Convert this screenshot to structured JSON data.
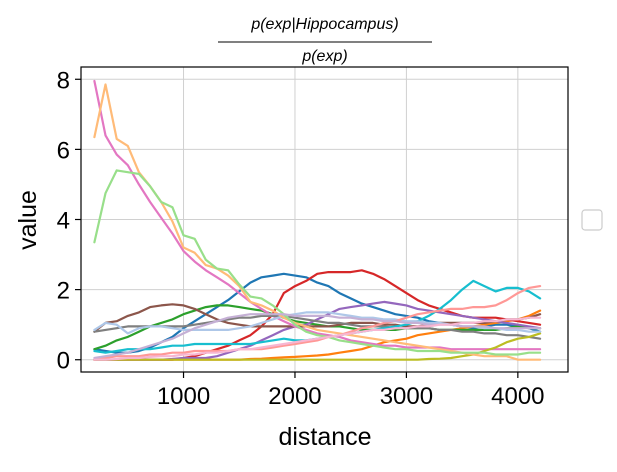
{
  "chart_data": {
    "type": "line",
    "title_numerator": "p(exp|Hippocampus)",
    "title_denominator": "p(exp)",
    "xlabel": "distance",
    "ylabel": "value",
    "xlim": [
      80,
      4450
    ],
    "ylim": [
      -0.35,
      8.35
    ],
    "xticks": [
      1000,
      2000,
      3000,
      4000
    ],
    "yticks": [
      0,
      2,
      4,
      6,
      8
    ],
    "grid": true,
    "legend": "right, empty",
    "x": [
      200,
      300,
      400,
      500,
      600,
      700,
      800,
      900,
      1000,
      1100,
      1200,
      1300,
      1400,
      1500,
      1600,
      1700,
      1800,
      1900,
      2000,
      2100,
      2200,
      2300,
      2400,
      2500,
      2600,
      2700,
      2800,
      2900,
      3000,
      3100,
      3200,
      3300,
      3400,
      3500,
      3600,
      3700,
      3800,
      3900,
      4000,
      4100,
      4200
    ],
    "series": [
      {
        "color": "#1f77b4",
        "values": [
          0.3,
          0.25,
          0.2,
          0.2,
          0.25,
          0.35,
          0.5,
          0.65,
          0.9,
          1.1,
          1.3,
          1.5,
          1.7,
          1.95,
          2.2,
          2.35,
          2.4,
          2.45,
          2.4,
          2.35,
          2.2,
          2.1,
          1.9,
          1.75,
          1.6,
          1.5,
          1.4,
          1.3,
          1.25,
          1.2,
          1.1,
          1.05,
          1.0,
          0.95,
          0.9,
          0.95,
          1.0,
          1.0,
          0.95,
          0.9,
          0.8
        ]
      },
      {
        "color": "#ff7f0e",
        "values": [
          0.0,
          0.0,
          0.0,
          0.0,
          0.0,
          0.0,
          0.0,
          0.0,
          0.0,
          0.0,
          0.0,
          0.0,
          0.0,
          0.0,
          0.02,
          0.03,
          0.05,
          0.07,
          0.08,
          0.1,
          0.12,
          0.15,
          0.2,
          0.25,
          0.3,
          0.4,
          0.5,
          0.55,
          0.6,
          0.7,
          0.75,
          0.8,
          0.85,
          0.9,
          0.95,
          1.0,
          1.05,
          1.1,
          1.15,
          1.25,
          1.4
        ]
      },
      {
        "color": "#2ca02c",
        "values": [
          0.3,
          0.4,
          0.55,
          0.65,
          0.8,
          0.95,
          1.05,
          1.15,
          1.3,
          1.4,
          1.5,
          1.55,
          1.55,
          1.5,
          1.45,
          1.4,
          1.3,
          1.2,
          1.1,
          1.05,
          1.0,
          0.95,
          0.95,
          0.9,
          0.85,
          0.85,
          0.85,
          0.85,
          0.9,
          0.9,
          0.9,
          0.85,
          0.85,
          0.85,
          0.85,
          0.85,
          0.85,
          0.9,
          0.95,
          0.9,
          0.9
        ]
      },
      {
        "color": "#d62728",
        "values": [
          0.0,
          0.0,
          0.0,
          0.0,
          0.0,
          0.0,
          0.0,
          0.0,
          0.05,
          0.1,
          0.2,
          0.3,
          0.4,
          0.55,
          0.7,
          0.95,
          1.3,
          1.9,
          2.1,
          2.25,
          2.45,
          2.5,
          2.5,
          2.5,
          2.55,
          2.45,
          2.3,
          2.1,
          1.9,
          1.7,
          1.55,
          1.45,
          1.35,
          1.25,
          1.2,
          1.2,
          1.2,
          1.15,
          1.1,
          1.05,
          1.0
        ]
      },
      {
        "color": "#9467bd",
        "values": [
          0.0,
          0.0,
          0.0,
          0.0,
          0.0,
          0.0,
          0.0,
          0.02,
          0.05,
          0.05,
          0.05,
          0.1,
          0.2,
          0.3,
          0.4,
          0.55,
          0.7,
          0.85,
          0.95,
          1.0,
          1.15,
          1.3,
          1.45,
          1.5,
          1.55,
          1.6,
          1.65,
          1.6,
          1.55,
          1.45,
          1.4,
          1.35,
          1.3,
          1.25,
          1.2,
          1.15,
          1.1,
          1.05,
          1.0,
          0.95,
          0.9
        ]
      },
      {
        "color": "#8c564b",
        "values": [
          0.8,
          1.05,
          1.1,
          1.25,
          1.35,
          1.5,
          1.55,
          1.58,
          1.55,
          1.45,
          1.3,
          1.15,
          1.05,
          1.0,
          0.95,
          0.95,
          0.95,
          0.95,
          0.95,
          0.95,
          0.95,
          0.95,
          1.0,
          1.05,
          1.05,
          1.05,
          1.0,
          1.0,
          0.95,
          0.95,
          1.0,
          1.05,
          1.05,
          1.05,
          1.05,
          1.05,
          1.1,
          1.15,
          1.15,
          1.2,
          1.3
        ]
      },
      {
        "color": "#e377c2",
        "values": [
          7.95,
          6.4,
          5.85,
          5.55,
          5.0,
          4.5,
          4.05,
          3.6,
          3.1,
          2.8,
          2.55,
          2.35,
          2.15,
          1.9,
          1.65,
          1.45,
          1.25,
          1.1,
          0.95,
          0.85,
          0.75,
          0.7,
          0.65,
          0.55,
          0.5,
          0.45,
          0.4,
          0.4,
          0.35,
          0.35,
          0.35,
          0.35,
          0.3,
          0.3,
          0.3,
          0.3,
          0.3,
          0.3,
          0.3,
          0.3,
          0.3
        ]
      },
      {
        "color": "#7f7f7f",
        "values": [
          0.8,
          0.85,
          0.9,
          0.95,
          0.95,
          0.95,
          0.95,
          0.95,
          0.95,
          1.0,
          1.05,
          1.1,
          1.15,
          1.2,
          1.2,
          1.25,
          1.25,
          1.25,
          1.2,
          1.15,
          1.1,
          1.05,
          1.05,
          1.0,
          0.95,
          0.95,
          0.95,
          0.9,
          0.9,
          0.9,
          0.9,
          0.85,
          0.85,
          0.8,
          0.8,
          0.75,
          0.75,
          0.7,
          0.7,
          0.65,
          0.6
        ]
      },
      {
        "color": "#bcbd22",
        "values": [
          0.0,
          0.0,
          0.0,
          0.0,
          0.0,
          0.0,
          0.0,
          0.0,
          0.0,
          0.0,
          0.0,
          0.0,
          0.0,
          0.0,
          0.0,
          0.0,
          0.0,
          0.0,
          0.0,
          0.0,
          0.0,
          0.0,
          0.0,
          0.0,
          0.0,
          0.0,
          0.0,
          0.0,
          0.0,
          0.0,
          0.02,
          0.03,
          0.05,
          0.1,
          0.15,
          0.25,
          0.35,
          0.5,
          0.6,
          0.65,
          0.75
        ]
      },
      {
        "color": "#17becf",
        "values": [
          0.25,
          0.2,
          0.25,
          0.3,
          0.3,
          0.3,
          0.35,
          0.4,
          0.4,
          0.45,
          0.45,
          0.45,
          0.45,
          0.45,
          0.45,
          0.5,
          0.55,
          0.6,
          0.55,
          0.55,
          0.6,
          0.65,
          0.7,
          0.75,
          0.8,
          0.85,
          0.9,
          0.95,
          1.0,
          1.1,
          1.25,
          1.45,
          1.7,
          2.0,
          2.25,
          2.1,
          1.95,
          2.05,
          2.05,
          1.95,
          1.75
        ]
      },
      {
        "color": "#aec7e8",
        "values": [
          0.85,
          1.05,
          1.0,
          0.75,
          0.9,
          0.95,
          0.95,
          0.9,
          0.85,
          0.85,
          0.85,
          0.85,
          0.85,
          0.9,
          0.95,
          1.05,
          1.15,
          1.25,
          1.3,
          1.35,
          1.35,
          1.35,
          1.3,
          1.25,
          1.2,
          1.2,
          1.15,
          1.15,
          1.1,
          1.1,
          1.05,
          1.05,
          1.0,
          0.95,
          0.95,
          0.9,
          0.9,
          0.85,
          0.85,
          0.8,
          0.8
        ]
      },
      {
        "color": "#ffbb78",
        "values": [
          6.35,
          7.85,
          6.3,
          6.1,
          5.35,
          4.95,
          4.5,
          3.95,
          3.2,
          3.05,
          2.7,
          2.6,
          2.4,
          2.1,
          1.65,
          1.55,
          1.4,
          1.2,
          1.05,
          0.95,
          0.85,
          0.8,
          0.75,
          0.7,
          0.65,
          0.6,
          0.55,
          0.5,
          0.45,
          0.4,
          0.35,
          0.3,
          0.25,
          0.2,
          0.15,
          0.1,
          0.1,
          0.1,
          0.0,
          0.0,
          0.0
        ]
      },
      {
        "color": "#98df8a",
        "values": [
          3.35,
          4.75,
          5.4,
          5.35,
          5.3,
          4.95,
          4.5,
          4.35,
          3.55,
          3.45,
          2.85,
          2.6,
          2.55,
          2.15,
          1.8,
          1.75,
          1.55,
          1.3,
          1.0,
          0.8,
          0.7,
          0.65,
          0.55,
          0.5,
          0.45,
          0.4,
          0.35,
          0.3,
          0.3,
          0.25,
          0.25,
          0.25,
          0.2,
          0.2,
          0.2,
          0.2,
          0.15,
          0.15,
          0.15,
          0.2,
          0.2
        ]
      },
      {
        "color": "#ff9896",
        "values": [
          0.0,
          0.05,
          0.1,
          0.1,
          0.1,
          0.15,
          0.15,
          0.2,
          0.2,
          0.25,
          0.25,
          0.25,
          0.25,
          0.3,
          0.3,
          0.3,
          0.35,
          0.4,
          0.45,
          0.5,
          0.55,
          0.65,
          0.7,
          0.8,
          0.9,
          0.95,
          1.05,
          1.1,
          1.2,
          1.3,
          1.35,
          1.4,
          1.45,
          1.45,
          1.5,
          1.5,
          1.55,
          1.7,
          1.9,
          2.05,
          2.1
        ]
      },
      {
        "color": "#c5b0d5",
        "values": [
          0.05,
          0.1,
          0.15,
          0.2,
          0.3,
          0.4,
          0.5,
          0.6,
          0.75,
          0.9,
          1.0,
          1.1,
          1.2,
          1.25,
          1.3,
          1.3,
          1.3,
          1.3,
          1.25,
          1.25,
          1.25,
          1.25,
          1.2,
          1.2,
          1.15,
          1.15,
          1.1,
          1.1,
          1.05,
          1.05,
          1.0,
          1.0,
          1.0,
          0.95,
          0.95,
          0.95,
          0.9,
          0.9,
          0.9,
          0.9,
          0.9
        ]
      },
      {
        "color": "#f7b6d2",
        "values": [
          0.0,
          0.0,
          0.02,
          0.05,
          0.05,
          0.08,
          0.1,
          0.1,
          0.15,
          0.15,
          0.2,
          0.2,
          0.25,
          0.3,
          0.3,
          0.35,
          0.4,
          0.45,
          0.5,
          0.55,
          0.6,
          0.65,
          0.7,
          0.75,
          0.8,
          0.85,
          0.85,
          0.9,
          0.9,
          0.95,
          0.95,
          1.0,
          1.0,
          1.05,
          1.05,
          1.1,
          1.1,
          1.15,
          1.15,
          1.2,
          1.2
        ]
      }
    ]
  }
}
